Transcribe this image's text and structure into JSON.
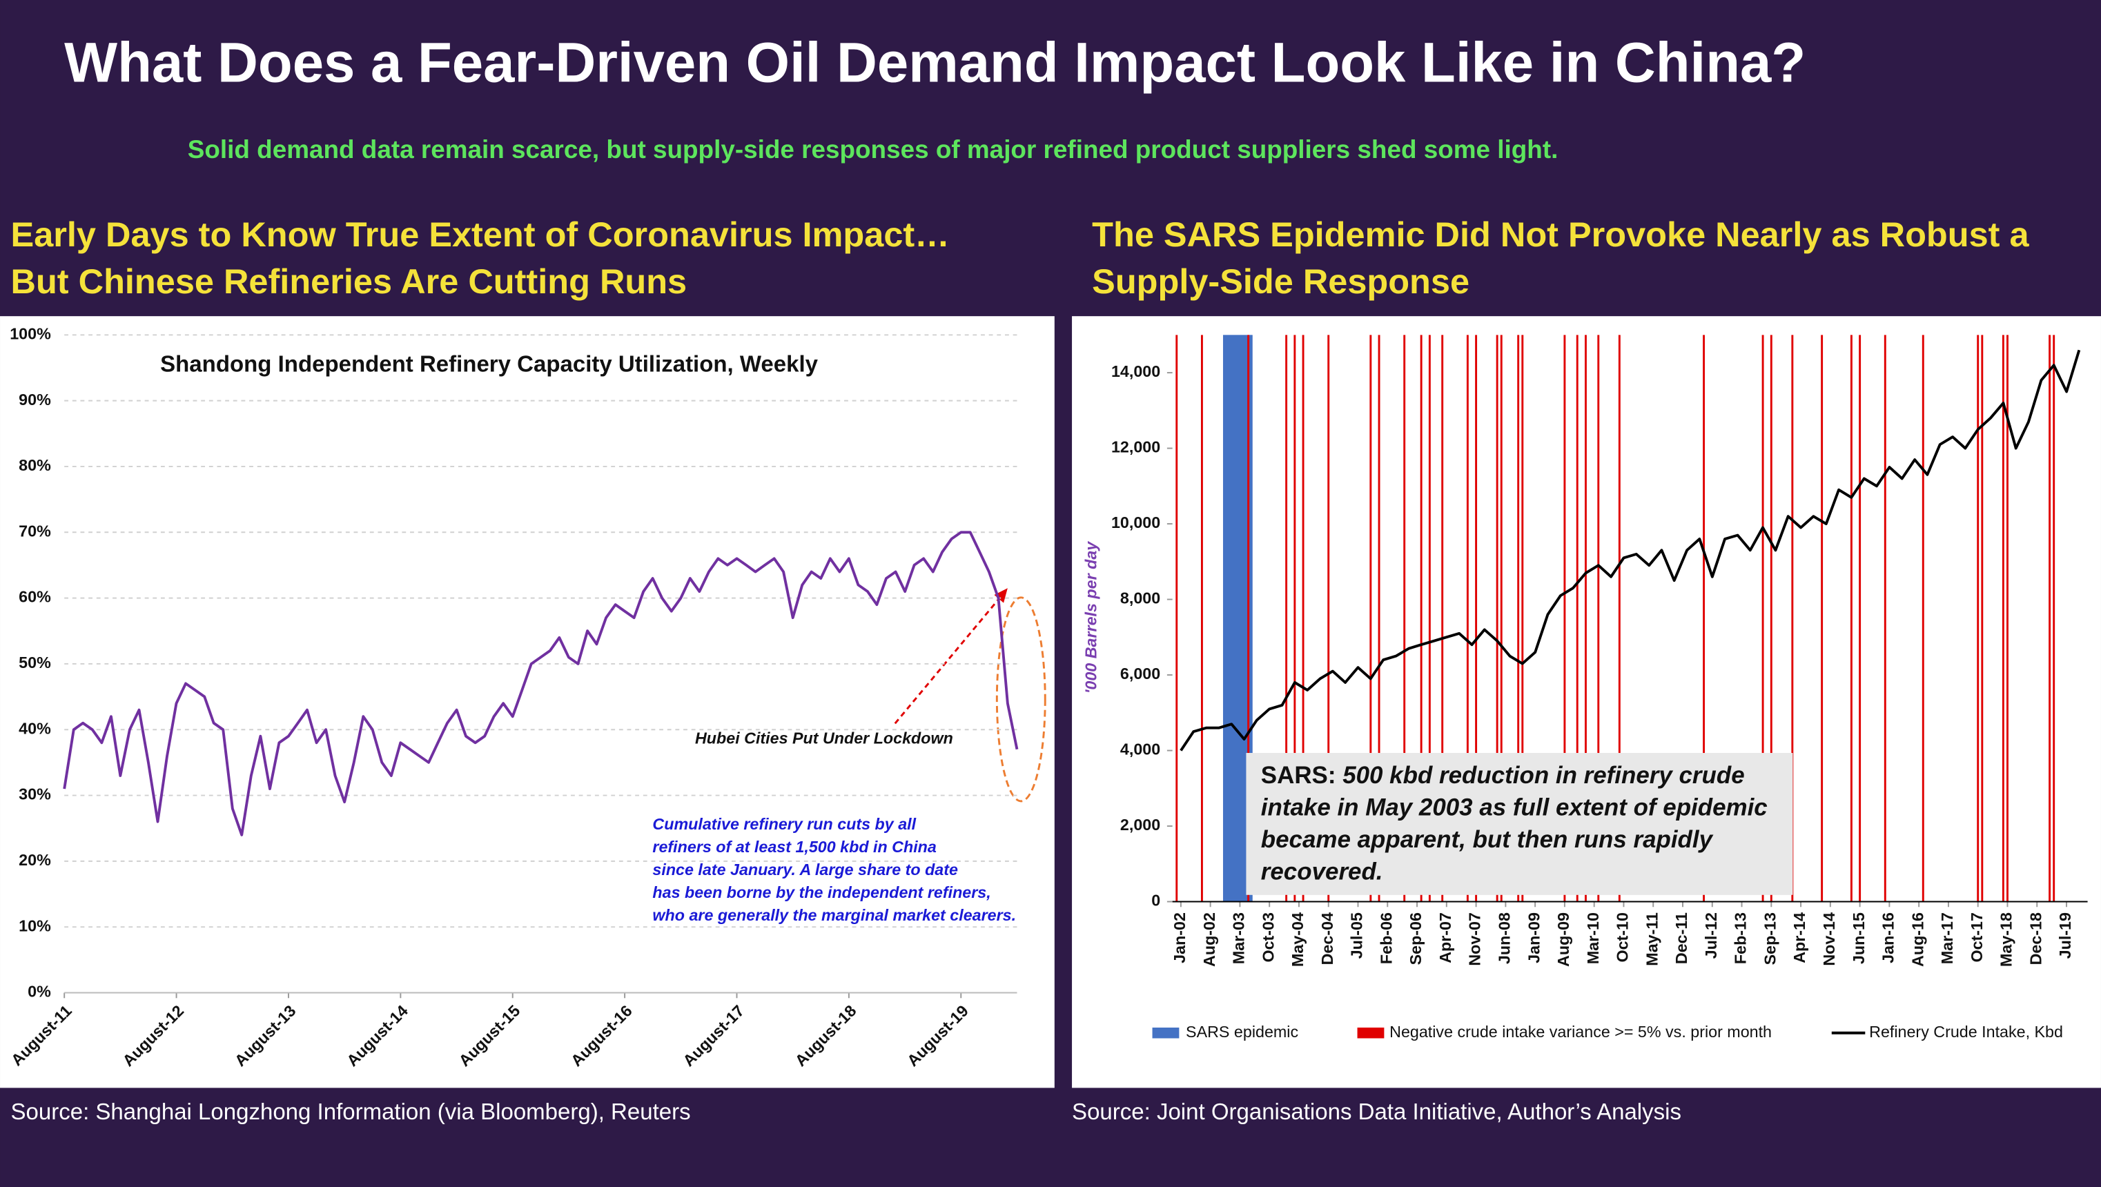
{
  "title": "What Does a Fear-Driven Oil Demand Impact Look Like in China?",
  "subtitle": "Solid demand data remain scarce, but supply-side responses of major refined product suppliers shed some light.",
  "panels": [
    {
      "heading": [
        "Early Days to Know True Extent of Coronavirus Impact…",
        "But Chinese Refineries Are Cutting Runs"
      ],
      "source": "Source: Shanghai Longzhong Information (via Bloomberg), Reuters"
    },
    {
      "heading": [
        "The SARS Epidemic Did Not Provoke Nearly as Robust a",
        "Supply-Side Response"
      ],
      "source": "Source: Joint Organisations Data Initiative, Author’s Analysis"
    }
  ],
  "chart_data": [
    {
      "type": "line",
      "title": "Shandong Independent Refinery Capacity Utilization, Weekly",
      "color": "#7030a0",
      "grid": true,
      "x": [
        "2011-08",
        "2011-09",
        "2011-10",
        "2011-11",
        "2011-12",
        "2012-01",
        "2012-02",
        "2012-03",
        "2012-04",
        "2012-05",
        "2012-06",
        "2012-07",
        "2012-08",
        "2012-09",
        "2012-10",
        "2012-11",
        "2012-12",
        "2013-01",
        "2013-02",
        "2013-03",
        "2013-04",
        "2013-05",
        "2013-06",
        "2013-07",
        "2013-08",
        "2013-09",
        "2013-10",
        "2013-11",
        "2013-12",
        "2014-01",
        "2014-02",
        "2014-03",
        "2014-04",
        "2014-05",
        "2014-06",
        "2014-07",
        "2014-08",
        "2014-09",
        "2014-10",
        "2014-11",
        "2014-12",
        "2015-01",
        "2015-02",
        "2015-03",
        "2015-04",
        "2015-05",
        "2015-06",
        "2015-07",
        "2015-08",
        "2015-09",
        "2015-10",
        "2015-11",
        "2015-12",
        "2016-01",
        "2016-02",
        "2016-03",
        "2016-04",
        "2016-05",
        "2016-06",
        "2016-07",
        "2016-08",
        "2016-09",
        "2016-10",
        "2016-11",
        "2016-12",
        "2017-01",
        "2017-02",
        "2017-03",
        "2017-04",
        "2017-05",
        "2017-06",
        "2017-07",
        "2017-08",
        "2017-09",
        "2017-10",
        "2017-11",
        "2017-12",
        "2018-01",
        "2018-02",
        "2018-03",
        "2018-04",
        "2018-05",
        "2018-06",
        "2018-07",
        "2018-08",
        "2018-09",
        "2018-10",
        "2018-11",
        "2018-12",
        "2019-01",
        "2019-02",
        "2019-03",
        "2019-04",
        "2019-05",
        "2019-06",
        "2019-07",
        "2019-08",
        "2019-09",
        "2019-10",
        "2019-11",
        "2019-12",
        "2020-01",
        "2020-02"
      ],
      "values": [
        31,
        40,
        41,
        40,
        38,
        42,
        33,
        40,
        43,
        35,
        26,
        36,
        44,
        47,
        46,
        45,
        41,
        40,
        28,
        24,
        33,
        39,
        31,
        38,
        39,
        41,
        43,
        38,
        40,
        33,
        29,
        35,
        42,
        40,
        35,
        33,
        38,
        37,
        36,
        35,
        38,
        41,
        43,
        39,
        38,
        39,
        42,
        44,
        42,
        46,
        50,
        51,
        52,
        54,
        51,
        50,
        55,
        53,
        57,
        59,
        58,
        57,
        61,
        63,
        60,
        58,
        60,
        63,
        61,
        64,
        66,
        65,
        66,
        65,
        64,
        65,
        66,
        64,
        57,
        62,
        64,
        63,
        66,
        64,
        66,
        62,
        61,
        59,
        63,
        64,
        61,
        65,
        66,
        64,
        67,
        69,
        70,
        70,
        67,
        64,
        60,
        44,
        37
      ],
      "xlim": [
        "2011-08",
        "2020-02"
      ],
      "xticks": [
        {
          "value": "2011-08",
          "label": "August-11"
        },
        {
          "value": "2012-08",
          "label": "August-12"
        },
        {
          "value": "2013-08",
          "label": "August-13"
        },
        {
          "value": "2014-08",
          "label": "August-14"
        },
        {
          "value": "2015-08",
          "label": "August-15"
        },
        {
          "value": "2016-08",
          "label": "August-16"
        },
        {
          "value": "2017-08",
          "label": "August-17"
        },
        {
          "value": "2018-08",
          "label": "August-18"
        },
        {
          "value": "2019-08",
          "label": "August-19"
        }
      ],
      "ylim": [
        0,
        100
      ],
      "yticks": [
        {
          "value": 0,
          "label": "0%"
        },
        {
          "value": 10,
          "label": "10%"
        },
        {
          "value": 20,
          "label": "20%"
        },
        {
          "value": 30,
          "label": "30%"
        },
        {
          "value": 40,
          "label": "40%"
        },
        {
          "value": 50,
          "label": "50%"
        },
        {
          "value": 60,
          "label": "60%"
        },
        {
          "value": 70,
          "label": "70%"
        },
        {
          "value": 80,
          "label": "80%"
        },
        {
          "value": 90,
          "label": "90%"
        },
        {
          "value": 100,
          "label": "100%"
        }
      ],
      "annotations": [
        "Hubei Cities Put Under Lockdown"
      ],
      "note": [
        "Cumulative refinery run cuts by all",
        "refiners of at least 1,500 kbd in China",
        "since late January. A large share to date",
        "has been borne by the independent refiners,",
        "who are generally the marginal market clearers."
      ]
    },
    {
      "type": "line",
      "ylabel": "'000 Barrels per day",
      "x": [
        "2002-01",
        "2002-04",
        "2002-07",
        "2002-10",
        "2003-01",
        "2003-04",
        "2003-07",
        "2003-10",
        "2004-01",
        "2004-04",
        "2004-07",
        "2004-10",
        "2005-01",
        "2005-04",
        "2005-07",
        "2005-10",
        "2006-01",
        "2006-04",
        "2006-07",
        "2006-10",
        "2007-01",
        "2007-04",
        "2007-07",
        "2007-10",
        "2008-01",
        "2008-04",
        "2008-07",
        "2008-10",
        "2009-01",
        "2009-04",
        "2009-07",
        "2009-10",
        "2010-01",
        "2010-04",
        "2010-07",
        "2010-10",
        "2011-01",
        "2011-04",
        "2011-07",
        "2011-10",
        "2012-01",
        "2012-04",
        "2012-07",
        "2012-10",
        "2013-01",
        "2013-04",
        "2013-07",
        "2013-10",
        "2014-01",
        "2014-04",
        "2014-07",
        "2014-10",
        "2015-01",
        "2015-04",
        "2015-07",
        "2015-10",
        "2016-01",
        "2016-04",
        "2016-07",
        "2016-10",
        "2017-01",
        "2017-04",
        "2017-07",
        "2017-10",
        "2018-01",
        "2018-04",
        "2018-07",
        "2018-10",
        "2019-01",
        "2019-04",
        "2019-07",
        "2019-10"
      ],
      "series": [
        {
          "name": "Refinery Crude Intake, Kbd",
          "color": "#000000",
          "values": [
            4000,
            4500,
            4600,
            4600,
            4700,
            4300,
            4800,
            5100,
            5200,
            5800,
            5600,
            5900,
            6100,
            5800,
            6200,
            5900,
            6400,
            6500,
            6700,
            6800,
            6900,
            7000,
            7100,
            6800,
            7200,
            6900,
            6500,
            6300,
            6600,
            7600,
            8100,
            8300,
            8700,
            8900,
            8600,
            9100,
            9200,
            8900,
            9300,
            8500,
            9300,
            9600,
            8600,
            9600,
            9700,
            9300,
            9900,
            9300,
            10200,
            9900,
            10200,
            10000,
            10900,
            10700,
            11200,
            11000,
            11500,
            11200,
            11700,
            11300,
            12100,
            12300,
            12000,
            12500,
            12800,
            13200,
            12000,
            12700,
            13800,
            14200,
            13500,
            14600
          ]
        }
      ],
      "span": {
        "name": "SARS epidemic",
        "color": "#4472c4",
        "x": [
          "2002-11",
          "2003-06"
        ]
      },
      "events": {
        "name": "Negative crude intake variance >= 5% vs. prior month",
        "color": "#e00000",
        "x": [
          "2001-12",
          "2002-06",
          "2003-05",
          "2004-02",
          "2004-04",
          "2004-06",
          "2004-12",
          "2005-10",
          "2005-12",
          "2006-06",
          "2006-10",
          "2006-12",
          "2007-03",
          "2007-09",
          "2007-11",
          "2008-04",
          "2008-05",
          "2008-09",
          "2008-10",
          "2009-08",
          "2009-11",
          "2010-01",
          "2010-04",
          "2010-09",
          "2012-05",
          "2013-07",
          "2013-09",
          "2014-02",
          "2014-09",
          "2015-04",
          "2015-06",
          "2015-12",
          "2016-09",
          "2017-10",
          "2017-11",
          "2018-04",
          "2018-05",
          "2019-03",
          "2019-04"
        ]
      },
      "xlim": [
        "2001-11",
        "2019-12"
      ],
      "xticks": [
        {
          "value": "2002-01",
          "label": "Jan-02"
        },
        {
          "value": "2002-08",
          "label": "Aug-02"
        },
        {
          "value": "2003-03",
          "label": "Mar-03"
        },
        {
          "value": "2003-10",
          "label": "Oct-03"
        },
        {
          "value": "2004-05",
          "label": "May-04"
        },
        {
          "value": "2004-12",
          "label": "Dec-04"
        },
        {
          "value": "2005-07",
          "label": "Jul-05"
        },
        {
          "value": "2006-02",
          "label": "Feb-06"
        },
        {
          "value": "2006-09",
          "label": "Sep-06"
        },
        {
          "value": "2007-04",
          "label": "Apr-07"
        },
        {
          "value": "2007-11",
          "label": "Nov-07"
        },
        {
          "value": "2008-06",
          "label": "Jun-08"
        },
        {
          "value": "2009-01",
          "label": "Jan-09"
        },
        {
          "value": "2009-08",
          "label": "Aug-09"
        },
        {
          "value": "2010-03",
          "label": "Mar-10"
        },
        {
          "value": "2010-10",
          "label": "Oct-10"
        },
        {
          "value": "2011-05",
          "label": "May-11"
        },
        {
          "value": "2011-12",
          "label": "Dec-11"
        },
        {
          "value": "2012-07",
          "label": "Jul-12"
        },
        {
          "value": "2013-02",
          "label": "Feb-13"
        },
        {
          "value": "2013-09",
          "label": "Sep-13"
        },
        {
          "value": "2014-04",
          "label": "Apr-14"
        },
        {
          "value": "2014-11",
          "label": "Nov-14"
        },
        {
          "value": "2015-06",
          "label": "Jun-15"
        },
        {
          "value": "2016-01",
          "label": "Jan-16"
        },
        {
          "value": "2016-08",
          "label": "Aug-16"
        },
        {
          "value": "2017-03",
          "label": "Mar-17"
        },
        {
          "value": "2017-10",
          "label": "Oct-17"
        },
        {
          "value": "2018-05",
          "label": "May-18"
        },
        {
          "value": "2018-12",
          "label": "Dec-18"
        },
        {
          "value": "2019-07",
          "label": "Jul-19"
        }
      ],
      "ylim": [
        0,
        15000
      ],
      "yticks": [
        0,
        {
          "value": 2000,
          "label": "2,000"
        },
        {
          "value": 4000,
          "label": "4,000"
        },
        {
          "value": 6000,
          "label": "6,000"
        },
        {
          "value": 8000,
          "label": "8,000"
        },
        {
          "value": 10000,
          "label": "10,000"
        },
        {
          "value": 12000,
          "label": "12,000"
        },
        {
          "value": 14000,
          "label": "14,000"
        }
      ],
      "annotation": {
        "lead": "SARS:",
        "lines": [
          " 500 kbd reduction in refinery crude",
          "intake in May 2003 as full extent of epidemic",
          "became apparent, but then runs rapidly",
          "recovered."
        ]
      }
    }
  ]
}
